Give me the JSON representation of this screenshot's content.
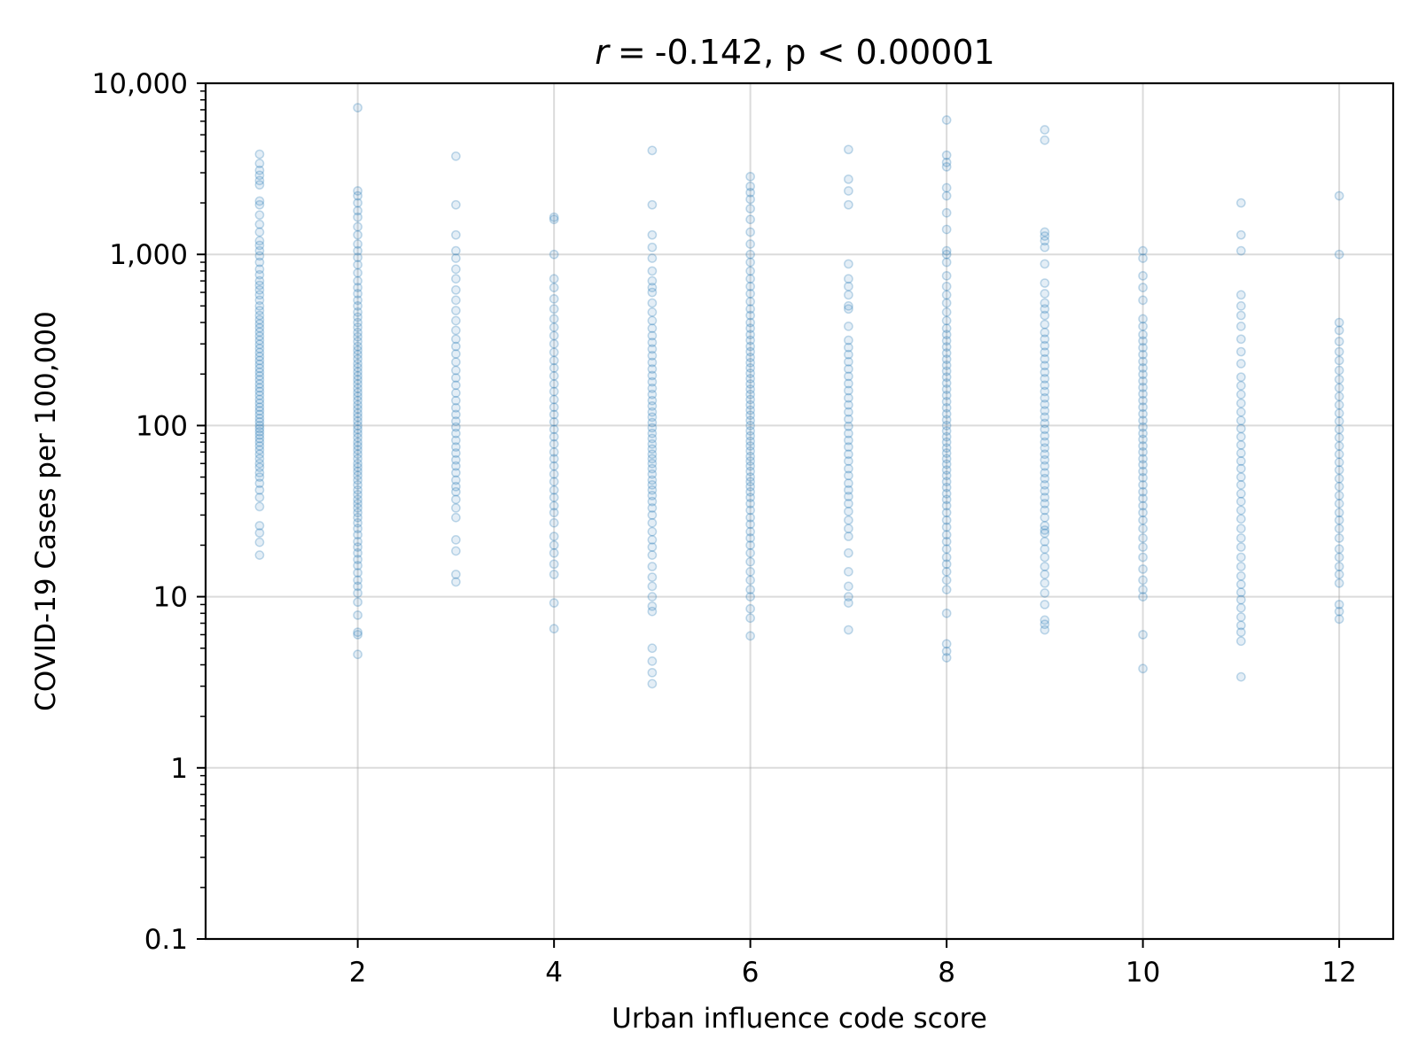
{
  "chart_data": {
    "type": "scatter",
    "title": "-0.142, p < 0.00001",
    "title_italic_prefix": "r",
    "title_connector": "=",
    "xlabel": "Urban influence code score",
    "ylabel": "COVID-19 Cases per 100,000",
    "xlim": [
      0.45,
      12.55
    ],
    "ylim": [
      0.1,
      10000
    ],
    "y_scale": "log",
    "x_ticks": [
      2,
      4,
      6,
      8,
      10,
      12
    ],
    "x_tick_labels": [
      "2",
      "4",
      "6",
      "8",
      "10",
      "12"
    ],
    "y_ticks": [
      0.1,
      1,
      10,
      100,
      1000,
      10000
    ],
    "y_tick_labels": [
      "0.1",
      "1",
      "10",
      "100",
      "1,000",
      "10,000"
    ],
    "grid": true,
    "marker_color": "#1f77b4",
    "series": [
      {
        "groups": [
          {
            "x": 1,
            "values": [
              17.5,
              20.8,
              23.6,
              26.0,
              33.6,
              38.0,
              42.0,
              46.0,
              50.0,
              53.0,
              57.0,
              60.0,
              64.0,
              68.0,
              72.0,
              76.0,
              80.0,
              84.0,
              88.0,
              92.0,
              96.0,
              100.0,
              105.0,
              110.0,
              116.0,
              122.0,
              128.0,
              135.0,
              142.0,
              150.0,
              158.0,
              166.0,
              175.0,
              185.0,
              195.0,
              205.0,
              216.0,
              228.0,
              240.0,
              253.0,
              267.0,
              282.0,
              298.0,
              315.0,
              333.0,
              352.0,
              372.0,
              393.0,
              415.0,
              440.0,
              470.0,
              500.0,
              540.0,
              580.0,
              620.0,
              660.0,
              700.0,
              760.0,
              820.0,
              900.0,
              980.0,
              1050.0,
              1130.0,
              1200.0,
              1350.0,
              1500.0,
              1700.0,
              1950.0,
              2050.0,
              2550.0,
              2700.0,
              2900.0,
              3100.0,
              3400.0,
              3850.0
            ]
          },
          {
            "x": 2,
            "values": [
              4.6,
              6.0,
              6.2,
              7.8,
              9.3,
              10.5,
              11.5,
              12.5,
              13.8,
              15.2,
              16.5,
              18.0,
              19.5,
              21.0,
              23.0,
              25.0,
              27.0,
              29.0,
              31.0,
              33.0,
              35.0,
              37.0,
              39.5,
              42.0,
              45.0,
              48.0,
              51.0,
              54.0,
              57.0,
              60.0,
              64.0,
              68.0,
              72.0,
              76.0,
              80.0,
              85.0,
              90.0,
              95.0,
              100.0,
              106.0,
              112.0,
              118.0,
              125.0,
              132.0,
              140.0,
              148.0,
              156.0,
              165.0,
              175.0,
              185.0,
              195.0,
              206.0,
              218.0,
              230.0,
              245.0,
              260.0,
              275.0,
              290.0,
              310.0,
              330.0,
              350.0,
              375.0,
              400.0,
              430.0,
              460.0,
              500.0,
              540.0,
              590.0,
              640.0,
              700.0,
              780.0,
              870.0,
              960.0,
              1050.0,
              1150.0,
              1300.0,
              1450.0,
              1650.0,
              1800.0,
              2000.0,
              2200.0,
              2350.0,
              7200.0
            ]
          },
          {
            "x": 3,
            "values": [
              12.2,
              13.5,
              18.5,
              21.5,
              29.0,
              33.0,
              37.0,
              41.0,
              44.0,
              48.0,
              53.0,
              58.0,
              63.0,
              69.0,
              75.0,
              82.0,
              90.0,
              98.0,
              106.0,
              116.0,
              127.0,
              140.0,
              155.0,
              172.0,
              190.0,
              210.0,
              235.0,
              262.0,
              290.0,
              320.0,
              360.0,
              410.0,
              470.0,
              540.0,
              620.0,
              720.0,
              820.0,
              950.0,
              1050.0,
              1300.0,
              1950.0,
              3750.0
            ]
          },
          {
            "x": 4,
            "values": [
              6.5,
              9.2,
              13.5,
              15.5,
              18.0,
              20.0,
              22.5,
              27.0,
              31.0,
              34.0,
              38.0,
              42.0,
              47.0,
              52.0,
              58.0,
              64.0,
              70.0,
              78.0,
              86.0,
              95.0,
              105.0,
              116.0,
              128.0,
              142.0,
              158.0,
              175.0,
              195.0,
              217.0,
              240.0,
              268.0,
              300.0,
              335.0,
              375.0,
              420.0,
              480.0,
              550.0,
              640.0,
              720.0,
              1000.0,
              1600.0,
              1650.0
            ]
          },
          {
            "x": 5,
            "values": [
              3.1,
              3.6,
              4.2,
              5.0,
              8.2,
              8.8,
              10.0,
              11.5,
              13.0,
              15.0,
              17.5,
              19.5,
              21.5,
              24.0,
              27.0,
              30.0,
              33.0,
              36.0,
              39.0,
              42.0,
              45.0,
              48.0,
              52.0,
              56.0,
              60.0,
              64.0,
              68.0,
              73.0,
              78.0,
              84.0,
              90.0,
              97.0,
              104.0,
              112.0,
              120.0,
              130.0,
              140.0,
              152.0,
              165.0,
              180.0,
              196.0,
              214.0,
              234.0,
              256.0,
              280.0,
              306.0,
              335.0,
              370.0,
              410.0,
              460.0,
              520.0,
              600.0,
              640.0,
              700.0,
              800.0,
              950.0,
              1100.0,
              1300.0,
              1950.0,
              4050.0
            ]
          },
          {
            "x": 6,
            "values": [
              5.9,
              7.5,
              8.5,
              10.0,
              11.0,
              12.5,
              14.0,
              16.0,
              18.0,
              20.0,
              22.0,
              24.0,
              26.5,
              29.0,
              32.0,
              35.0,
              38.0,
              41.0,
              44.0,
              47.0,
              50.0,
              54.0,
              58.0,
              62.0,
              66.0,
              71.0,
              76.0,
              81.0,
              87.0,
              93.0,
              100.0,
              107.0,
              115.0,
              123.0,
              132.0,
              142.0,
              152.0,
              163.0,
              175.0,
              188.0,
              202.0,
              217.0,
              233.0,
              250.0,
              270.0,
              290.0,
              315.0,
              340.0,
              370.0,
              400.0,
              440.0,
              480.0,
              530.0,
              590.0,
              650.0,
              720.0,
              800.0,
              900.0,
              1000.0,
              1150.0,
              1350.0,
              1600.0,
              1850.0,
              2100.0,
              2300.0,
              2500.0,
              2850.0
            ]
          },
          {
            "x": 7,
            "values": [
              6.4,
              9.2,
              10.0,
              11.5,
              14.0,
              18.0,
              22.5,
              25.0,
              28.0,
              31.5,
              35.0,
              38.5,
              42.0,
              46.0,
              51.0,
              56.0,
              62.0,
              68.0,
              75.0,
              82.0,
              90.0,
              99.0,
              109.0,
              120.0,
              132.0,
              145.0,
              160.0,
              176.0,
              194.0,
              214.0,
              236.0,
              260.0,
              286.0,
              315.0,
              380.0,
              480.0,
              500.0,
              580.0,
              650.0,
              720.0,
              880.0,
              1950.0,
              2350.0,
              2750.0,
              4100.0
            ]
          },
          {
            "x": 8,
            "values": [
              4.4,
              4.8,
              5.3,
              8.0,
              11.0,
              12.5,
              14.0,
              15.5,
              17.0,
              19.0,
              21.0,
              23.0,
              25.5,
              28.0,
              31.0,
              34.0,
              37.0,
              40.0,
              43.5,
              47.0,
              51.0,
              55.0,
              59.5,
              64.0,
              69.0,
              74.0,
              80.0,
              86.0,
              93.0,
              100.0,
              108.0,
              117.0,
              127.0,
              138.0,
              150.0,
              163.0,
              177.0,
              192.0,
              208.0,
              225.0,
              244.0,
              265.0,
              288.0,
              313.0,
              340.0,
              370.0,
              410.0,
              460.0,
              520.0,
              580.0,
              650.0,
              750.0,
              900.0,
              1000.0,
              1050.0,
              1400.0,
              1750.0,
              2200.0,
              2450.0,
              3250.0,
              3450.0,
              3800.0,
              6100.0
            ]
          },
          {
            "x": 9,
            "values": [
              6.4,
              6.9,
              7.3,
              9.0,
              10.5,
              12.0,
              13.5,
              15.0,
              17.0,
              19.0,
              21.0,
              23.5,
              24.5,
              26.0,
              29.0,
              32.0,
              35.0,
              38.0,
              41.5,
              45.0,
              49.0,
              53.0,
              58.0,
              63.0,
              68.0,
              74.0,
              80.0,
              87.0,
              95.0,
              103.0,
              112.0,
              122.0,
              133.0,
              145.0,
              158.0,
              172.0,
              188.0,
              205.0,
              224.0,
              245.0,
              268.0,
              293.0,
              320.0,
              350.0,
              390.0,
              440.0,
              480.0,
              520.0,
              590.0,
              680.0,
              880.0,
              1100.0,
              1200.0,
              1280.0,
              1350.0,
              4650.0,
              5350.0
            ]
          },
          {
            "x": 10,
            "values": [
              3.8,
              6.0,
              10.0,
              11.0,
              12.5,
              14.5,
              17.0,
              19.5,
              22.0,
              25.0,
              28.0,
              31.0,
              34.0,
              37.5,
              41.0,
              45.0,
              49.5,
              54.0,
              59.0,
              64.0,
              70.0,
              76.0,
              83.0,
              90.0,
              98.0,
              107.0,
              117.0,
              128.0,
              140.0,
              153.0,
              167.0,
              182.0,
              199.0,
              217.0,
              237.0,
              260.0,
              285.0,
              312.0,
              340.0,
              380.0,
              420.0,
              540.0,
              640.0,
              750.0,
              950.0,
              1050.0
            ]
          },
          {
            "x": 11,
            "values": [
              3.4,
              5.5,
              6.2,
              6.8,
              7.6,
              8.6,
              9.6,
              10.6,
              11.8,
              13.2,
              15.0,
              17.0,
              19.5,
              22.0,
              25.0,
              28.5,
              32.0,
              36.0,
              40.0,
              45.0,
              50.0,
              56.0,
              62.0,
              69.0,
              77.0,
              86.0,
              96.0,
              107.0,
              120.0,
              135.0,
              152.0,
              171.0,
              192.0,
              230.0,
              270.0,
              320.0,
              380.0,
              440.0,
              500.0,
              580.0,
              1050.0,
              1300.0,
              2000.0
            ]
          },
          {
            "x": 12,
            "values": [
              7.4,
              8.2,
              9.0,
              12.0,
              13.5,
              15.0,
              17.0,
              19.0,
              22.0,
              25.0,
              28.0,
              31.0,
              35.0,
              39.0,
              44.0,
              49.0,
              55.0,
              61.0,
              68.0,
              76.0,
              85.0,
              95.0,
              106.0,
              118.0,
              132.0,
              148.0,
              166.0,
              186.0,
              210.0,
              240.0,
              270.0,
              310.0,
              360.0,
              400.0,
              1000.0,
              2200.0
            ]
          }
        ]
      }
    ]
  }
}
